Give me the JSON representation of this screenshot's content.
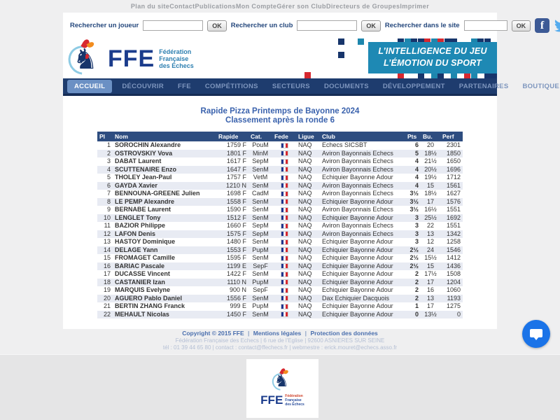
{
  "top_nav": {
    "separator": "|",
    "items": [
      "Plan du site",
      "Contact",
      "Publications",
      "Mon Compte",
      "Gérer son Club",
      "Directeurs de Groupes",
      "Imprimer"
    ]
  },
  "search": {
    "player_label": "Rechercher un joueur",
    "club_label": "Rechercher un club",
    "site_label": "Rechercher dans le site",
    "ok_label": "OK",
    "player_value": "",
    "club_value": "",
    "site_value": ""
  },
  "header": {
    "logo_acronym": "FFE",
    "logo_name_lines": [
      "Fédération",
      "Française",
      "des Échecs"
    ],
    "slogan_line1_prefix": "L’INTELLIGENCE DU ",
    "slogan_line1_bold": "JEU",
    "slogan_line2_prefix": "L’ÉMOTION DU ",
    "slogan_line2_bold": "SPORT"
  },
  "nav": {
    "items": [
      {
        "label": "ACCUEIL",
        "active": true
      },
      {
        "label": "DÉCOUVRIR"
      },
      {
        "label": "FFE"
      },
      {
        "label": "COMPÉTITIONS"
      },
      {
        "label": "SECTEURS"
      },
      {
        "label": "DOCUMENTS"
      },
      {
        "label": "DÉVELOPPEMENT"
      },
      {
        "label": "PARTENAIRES"
      },
      {
        "label": "BOUTIQUE"
      }
    ]
  },
  "page": {
    "title_line1": "Rapide Pizza Printemps de Bayonne 2024",
    "title_line2": "Classement après la ronde 6"
  },
  "table": {
    "columns": [
      "Pl",
      "Nom",
      "Rapide",
      "Cat.",
      "Fede",
      "Ligue",
      "Club",
      "Pts",
      "Bu.",
      "Perf"
    ],
    "rows": [
      {
        "pl": "1",
        "nom": "SOROCHIN Alexandre",
        "rapide": "1759 F",
        "cat": "PouM",
        "fede": "FRA",
        "ligue": "NAQ",
        "club": "Echecs SICSBT",
        "pts": "6",
        "bu": "20",
        "perf": "2301"
      },
      {
        "pl": "2",
        "nom": "OSTROVSKIY Vova",
        "rapide": "1801 F",
        "cat": "MinM",
        "fede": "FRA",
        "ligue": "NAQ",
        "club": "Aviron Bayonnais Echecs",
        "pts": "5",
        "bu": "18½",
        "perf": "1850"
      },
      {
        "pl": "3",
        "nom": "DABAT Laurent",
        "rapide": "1617 F",
        "cat": "SepM",
        "fede": "FRA",
        "ligue": "NAQ",
        "club": "Aviron Bayonnais Echecs",
        "pts": "4",
        "bu": "21½",
        "perf": "1650"
      },
      {
        "pl": "4",
        "nom": "SCUTTENAIRE Enzo",
        "rapide": "1647 F",
        "cat": "SenM",
        "fede": "FRA",
        "ligue": "NAQ",
        "club": "Aviron Bayonnais Echecs",
        "pts": "4",
        "bu": "20½",
        "perf": "1696"
      },
      {
        "pl": "5",
        "nom": "THOLEY Jean-Paul",
        "rapide": "1757 F",
        "cat": "VetM",
        "fede": "FRA",
        "ligue": "NAQ",
        "club": "Echiquier Bayonne Adour",
        "pts": "4",
        "bu": "19½",
        "perf": "1712"
      },
      {
        "pl": "6",
        "nom": "GAYDA Xavier",
        "rapide": "1210 N",
        "cat": "SenM",
        "fede": "FRA",
        "ligue": "NAQ",
        "club": "Aviron Bayonnais Echecs",
        "pts": "4",
        "bu": "15",
        "perf": "1561"
      },
      {
        "pl": "7",
        "nom": "BENNOUNA-GREENE Julien",
        "rapide": "1698 F",
        "cat": "CadM",
        "fede": "FRA",
        "ligue": "NAQ",
        "club": "Aviron Bayonnais Echecs",
        "pts": "3½",
        "bu": "18½",
        "perf": "1627"
      },
      {
        "pl": "8",
        "nom": "LE PEMP Alexandre",
        "rapide": "1558 F",
        "cat": "SenM",
        "fede": "FRA",
        "ligue": "NAQ",
        "club": "Echiquier Bayonne Adour",
        "pts": "3½",
        "bu": "17",
        "perf": "1576"
      },
      {
        "pl": "9",
        "nom": "BERNABE Laurent",
        "rapide": "1590 F",
        "cat": "SenM",
        "fede": "FRA",
        "ligue": "NAQ",
        "club": "Aviron Bayonnais Echecs",
        "pts": "3½",
        "bu": "16½",
        "perf": "1551"
      },
      {
        "pl": "10",
        "nom": "LENGLET Tony",
        "rapide": "1512 F",
        "cat": "SenM",
        "fede": "FRA",
        "ligue": "NAQ",
        "club": "Echiquier Bayonne Adour",
        "pts": "3",
        "bu": "25½",
        "perf": "1692"
      },
      {
        "pl": "11",
        "nom": "BAZIOR Philippe",
        "rapide": "1660 F",
        "cat": "SepM",
        "fede": "FRA",
        "ligue": "NAQ",
        "club": "Aviron Bayonnais Echecs",
        "pts": "3",
        "bu": "22",
        "perf": "1551"
      },
      {
        "pl": "12",
        "nom": "LAFON Denis",
        "rapide": "1575 F",
        "cat": "SepM",
        "fede": "FRA",
        "ligue": "NAQ",
        "club": "Aviron Bayonnais Echecs",
        "pts": "3",
        "bu": "13",
        "perf": "1342"
      },
      {
        "pl": "13",
        "nom": "HASTOY Dominique",
        "rapide": "1480 F",
        "cat": "SenM",
        "fede": "FRA",
        "ligue": "NAQ",
        "club": "Echiquier Bayonne Adour",
        "pts": "3",
        "bu": "12",
        "perf": "1258"
      },
      {
        "pl": "14",
        "nom": "DELAGE Yann",
        "rapide": "1553 F",
        "cat": "PupM",
        "fede": "FRA",
        "ligue": "NAQ",
        "club": "Echiquier Bayonne Adour",
        "pts": "2½",
        "bu": "24",
        "perf": "1546"
      },
      {
        "pl": "15",
        "nom": "FROMAGET Camille",
        "rapide": "1595 F",
        "cat": "SenM",
        "fede": "FRA",
        "ligue": "NAQ",
        "club": "Echiquier Bayonne Adour",
        "pts": "2½",
        "bu": "15½",
        "perf": "1412"
      },
      {
        "pl": "16",
        "nom": "BARIAC Pascale",
        "rapide": "1199 E",
        "cat": "SepF",
        "fede": "FRA",
        "ligue": "NAQ",
        "club": "Echiquier Bayonne Adour",
        "pts": "2½",
        "bu": "15",
        "perf": "1436"
      },
      {
        "pl": "17",
        "nom": "DUCASSE Vincent",
        "rapide": "1422 F",
        "cat": "SenM",
        "fede": "FRA",
        "ligue": "NAQ",
        "club": "Echiquier Bayonne Adour",
        "pts": "2",
        "bu": "17½",
        "perf": "1508"
      },
      {
        "pl": "18",
        "nom": "CASTANIER Izan",
        "rapide": "1110 N",
        "cat": "PupM",
        "fede": "FRA",
        "ligue": "NAQ",
        "club": "Echiquier Bayonne Adour",
        "pts": "2",
        "bu": "17",
        "perf": "1204"
      },
      {
        "pl": "19",
        "nom": "MARQUIS Evelyne",
        "rapide": "900 N",
        "cat": "SepF",
        "fede": "FRA",
        "ligue": "NAQ",
        "club": "Echiquier Bayonne Adour",
        "pts": "2",
        "bu": "16",
        "perf": "1060"
      },
      {
        "pl": "20",
        "nom": "AGUERO Pablo Daniel",
        "rapide": "1556 F",
        "cat": "SenM",
        "fede": "FRA",
        "ligue": "NAQ",
        "club": "Dax Echiquier Dacquois",
        "pts": "2",
        "bu": "13",
        "perf": "1193"
      },
      {
        "pl": "21",
        "nom": "BERTIN ZHANG Franck",
        "rapide": "999 E",
        "cat": "PupM",
        "fede": "FRA",
        "ligue": "NAQ",
        "club": "Echiquier Bayonne Adour",
        "pts": "1",
        "bu": "17",
        "perf": "1275"
      },
      {
        "pl": "22",
        "nom": "MEHAULT Nicolas",
        "rapide": "1450 F",
        "cat": "SenM",
        "fede": "FRA",
        "ligue": "NAQ",
        "club": "Echiquier Bayonne Adour",
        "pts": "0",
        "bu": "13½",
        "perf": "0"
      }
    ]
  },
  "footer": {
    "separator": "|",
    "copyright": "Copyright © 2015 FFE",
    "legal_link": "Mentions légales",
    "privacy_link": "Protection des données",
    "address": "Fédération Française des Echecs | 6 rue de l'Eglise | 92600 ASNIERES SUR SEINE",
    "contact": "tél : 01 39 44 65 80 | contact : contact@ffechecs.fr | webmestre : erick.mouret@echecs.asso.fr"
  },
  "colors": {
    "nav_navy": "#1e3c6e",
    "table_header": "#2e4d80",
    "banner_teal": "#1e89b4",
    "accent_red": "#d7282f",
    "link_blue": "#3a62ad",
    "chat_blue": "#1a73e8",
    "facebook_blue": "#3d5a96",
    "twitter_blue": "#55acee"
  }
}
